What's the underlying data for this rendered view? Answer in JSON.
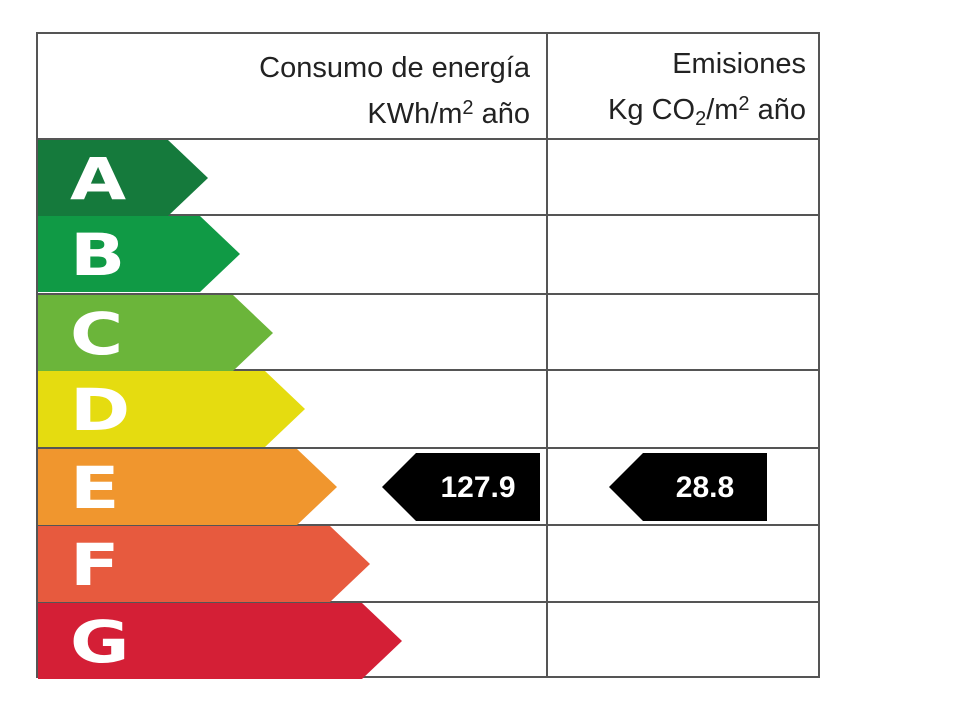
{
  "header": {
    "energy": {
      "line1": "Consumo de energía",
      "unit_pre": "KWh/m",
      "unit_sup": "2",
      "unit_post": " año"
    },
    "emissions": {
      "line1": "Emisiones",
      "unit_pre": "Kg CO",
      "unit_sub": "2",
      "unit_mid": "/m",
      "unit_sup": "2",
      "unit_post": " año"
    }
  },
  "bands": [
    {
      "letter": "A",
      "color": "#157a3c"
    },
    {
      "letter": "B",
      "color": "#109a45"
    },
    {
      "letter": "C",
      "color": "#6bb53a"
    },
    {
      "letter": "D",
      "color": "#e5dc10"
    },
    {
      "letter": "E",
      "color": "#f0962e"
    },
    {
      "letter": "F",
      "color": "#e75a3e"
    },
    {
      "letter": "G",
      "color": "#d41f36"
    }
  ],
  "rating": {
    "energy_value": "127.9",
    "emissions_value": "28.8",
    "band": "E",
    "indicator_color": "#000000"
  }
}
